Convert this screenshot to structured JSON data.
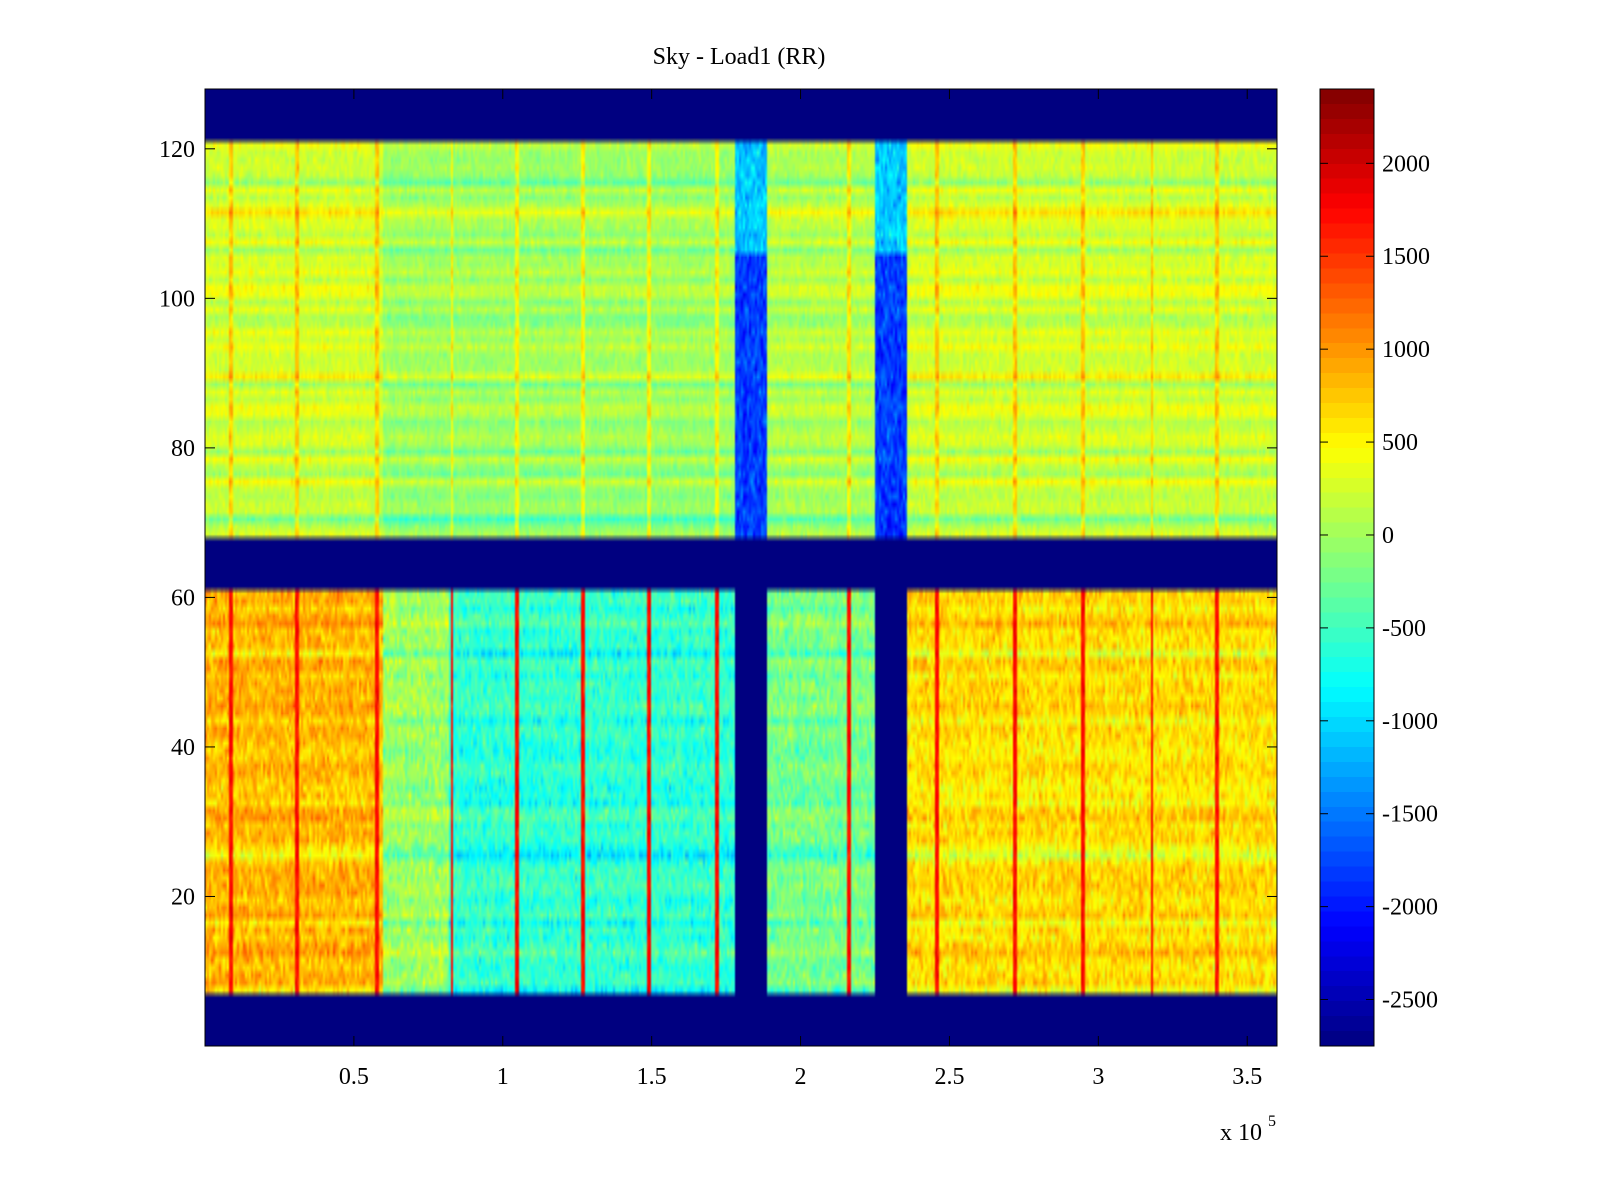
{
  "chart_data": {
    "type": "heatmap",
    "title": "Sky - Load1 (RR)",
    "xlabel": "",
    "ylabel": "",
    "x_multiplier": "x 10",
    "x_multiplier_exp": "5",
    "xlim": [
      0,
      360000
    ],
    "ylim": [
      0,
      128
    ],
    "x_ticks": [
      {
        "value": 0.5,
        "label": "0.5"
      },
      {
        "value": 1,
        "label": "1"
      },
      {
        "value": 1.5,
        "label": "1.5"
      },
      {
        "value": 2,
        "label": "2"
      },
      {
        "value": 2.5,
        "label": "2.5"
      },
      {
        "value": 3,
        "label": "3"
      },
      {
        "value": 3.5,
        "label": "3.5"
      }
    ],
    "y_ticks": [
      {
        "value": 20,
        "label": "20"
      },
      {
        "value": 40,
        "label": "40"
      },
      {
        "value": 60,
        "label": "60"
      },
      {
        "value": 80,
        "label": "80"
      },
      {
        "value": 100,
        "label": "100"
      },
      {
        "value": 120,
        "label": "120"
      }
    ],
    "colorbar": {
      "colormap": "jet",
      "clim": [
        -2750,
        2400
      ],
      "ticks": [
        {
          "value": 2000,
          "label": "2000"
        },
        {
          "value": 1500,
          "label": "1500"
        },
        {
          "value": 1000,
          "label": "1000"
        },
        {
          "value": 500,
          "label": "500"
        },
        {
          "value": 0,
          "label": "0"
        },
        {
          "value": -500,
          "label": "-500"
        },
        {
          "value": -1000,
          "label": "-1000"
        },
        {
          "value": -1500,
          "label": "-1500"
        },
        {
          "value": -2000,
          "label": "-2000"
        },
        {
          "value": -2500,
          "label": "-2500"
        }
      ]
    },
    "masked_value": -2750,
    "masked_row_bands": [
      [
        0,
        7
      ],
      [
        61,
        68
      ],
      [
        121,
        128
      ]
    ],
    "masked_column_bands": [
      [
        178000,
        189000
      ],
      [
        225000,
        236000
      ]
    ],
    "upper_band_rows": [
      68,
      121
    ],
    "lower_band_rows": [
      7,
      61
    ],
    "upper_band_column_masks": [
      [
        178000,
        189000
      ],
      [
        225000,
        236000
      ]
    ],
    "segment_levels_lower": [
      {
        "x": [
          0,
          60000
        ],
        "value": 850
      },
      {
        "x": [
          60000,
          82000
        ],
        "value": 0
      },
      {
        "x": [
          82000,
          178000
        ],
        "value": -550
      },
      {
        "x": [
          189000,
          225000
        ],
        "value": -200
      },
      {
        "x": [
          236000,
          360000
        ],
        "value": 650
      }
    ],
    "segment_levels_upper": [
      {
        "x": [
          0,
          60000
        ],
        "value": 250
      },
      {
        "x": [
          60000,
          178000
        ],
        "value": 0
      },
      {
        "x": [
          189000,
          225000
        ],
        "value": 100
      },
      {
        "x": [
          236000,
          360000
        ],
        "value": 250
      }
    ],
    "hot_columns": [
      9000,
      31000,
      58000,
      83000,
      105000,
      127000,
      149000,
      172000,
      216000,
      246000,
      272000,
      295000,
      318000,
      340000
    ]
  }
}
